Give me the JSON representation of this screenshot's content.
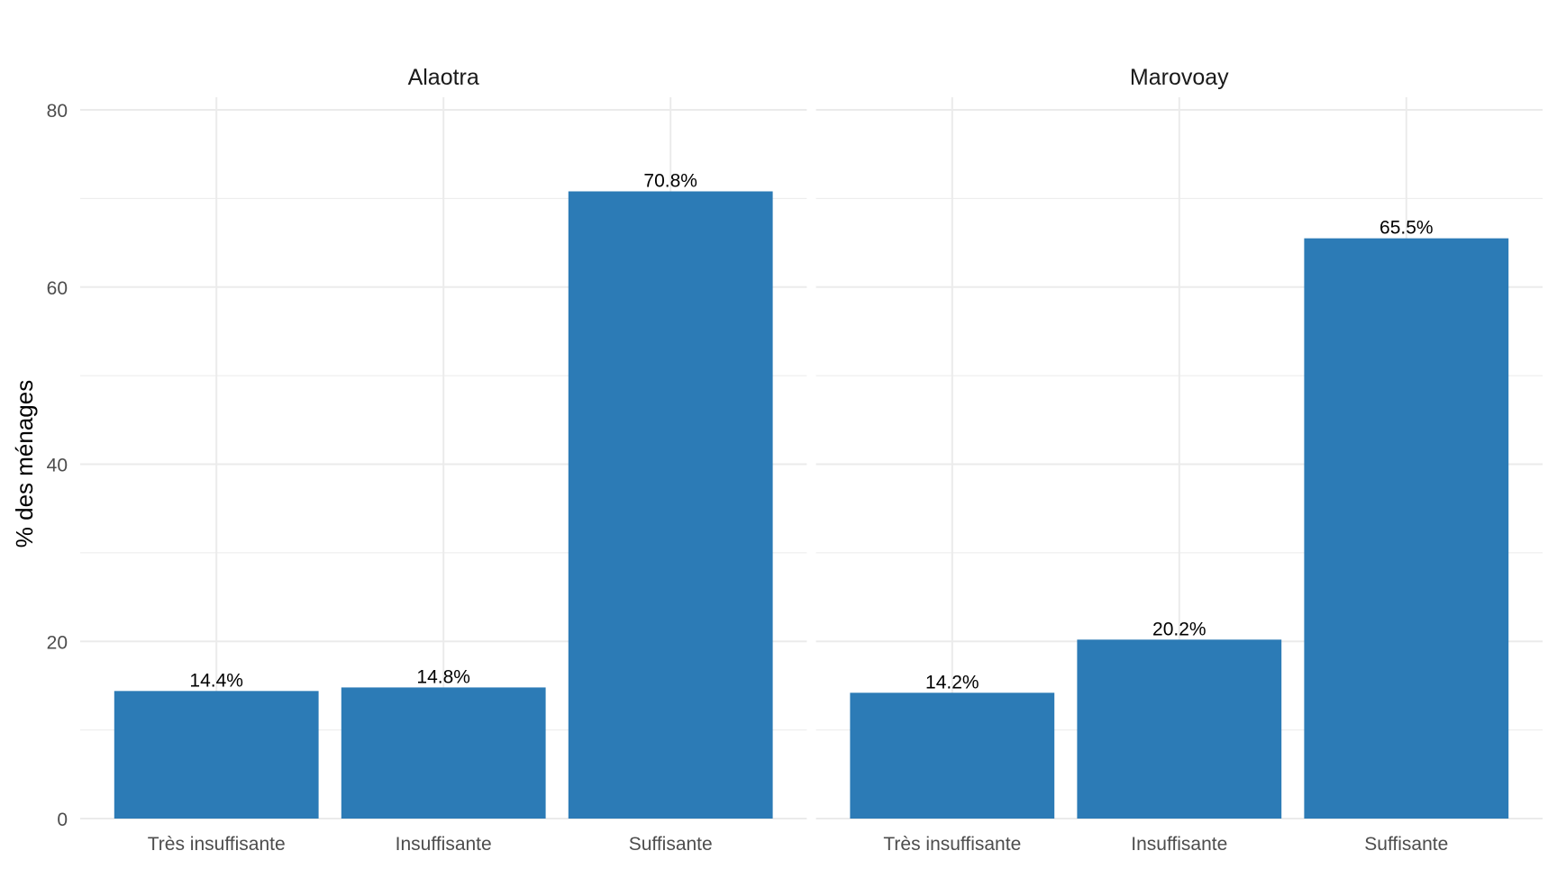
{
  "chart_data": {
    "type": "bar",
    "ylabel": "% des ménages",
    "xlabel": "",
    "ylim": [
      0,
      80
    ],
    "yticks": [
      0,
      20,
      40,
      60,
      80
    ],
    "grid": true,
    "bar_color": "#2c7bb6",
    "categories": [
      "Très insuffisante",
      "Insuffisante",
      "Suffisante"
    ],
    "panels": [
      {
        "title": "Alaotra",
        "values": [
          14.4,
          14.8,
          70.8
        ],
        "labels": [
          "14.4%",
          "14.8%",
          "70.8%"
        ]
      },
      {
        "title": "Marovoay",
        "values": [
          14.2,
          20.2,
          65.5
        ],
        "labels": [
          "14.2%",
          "20.2%",
          "65.5%"
        ]
      }
    ]
  }
}
